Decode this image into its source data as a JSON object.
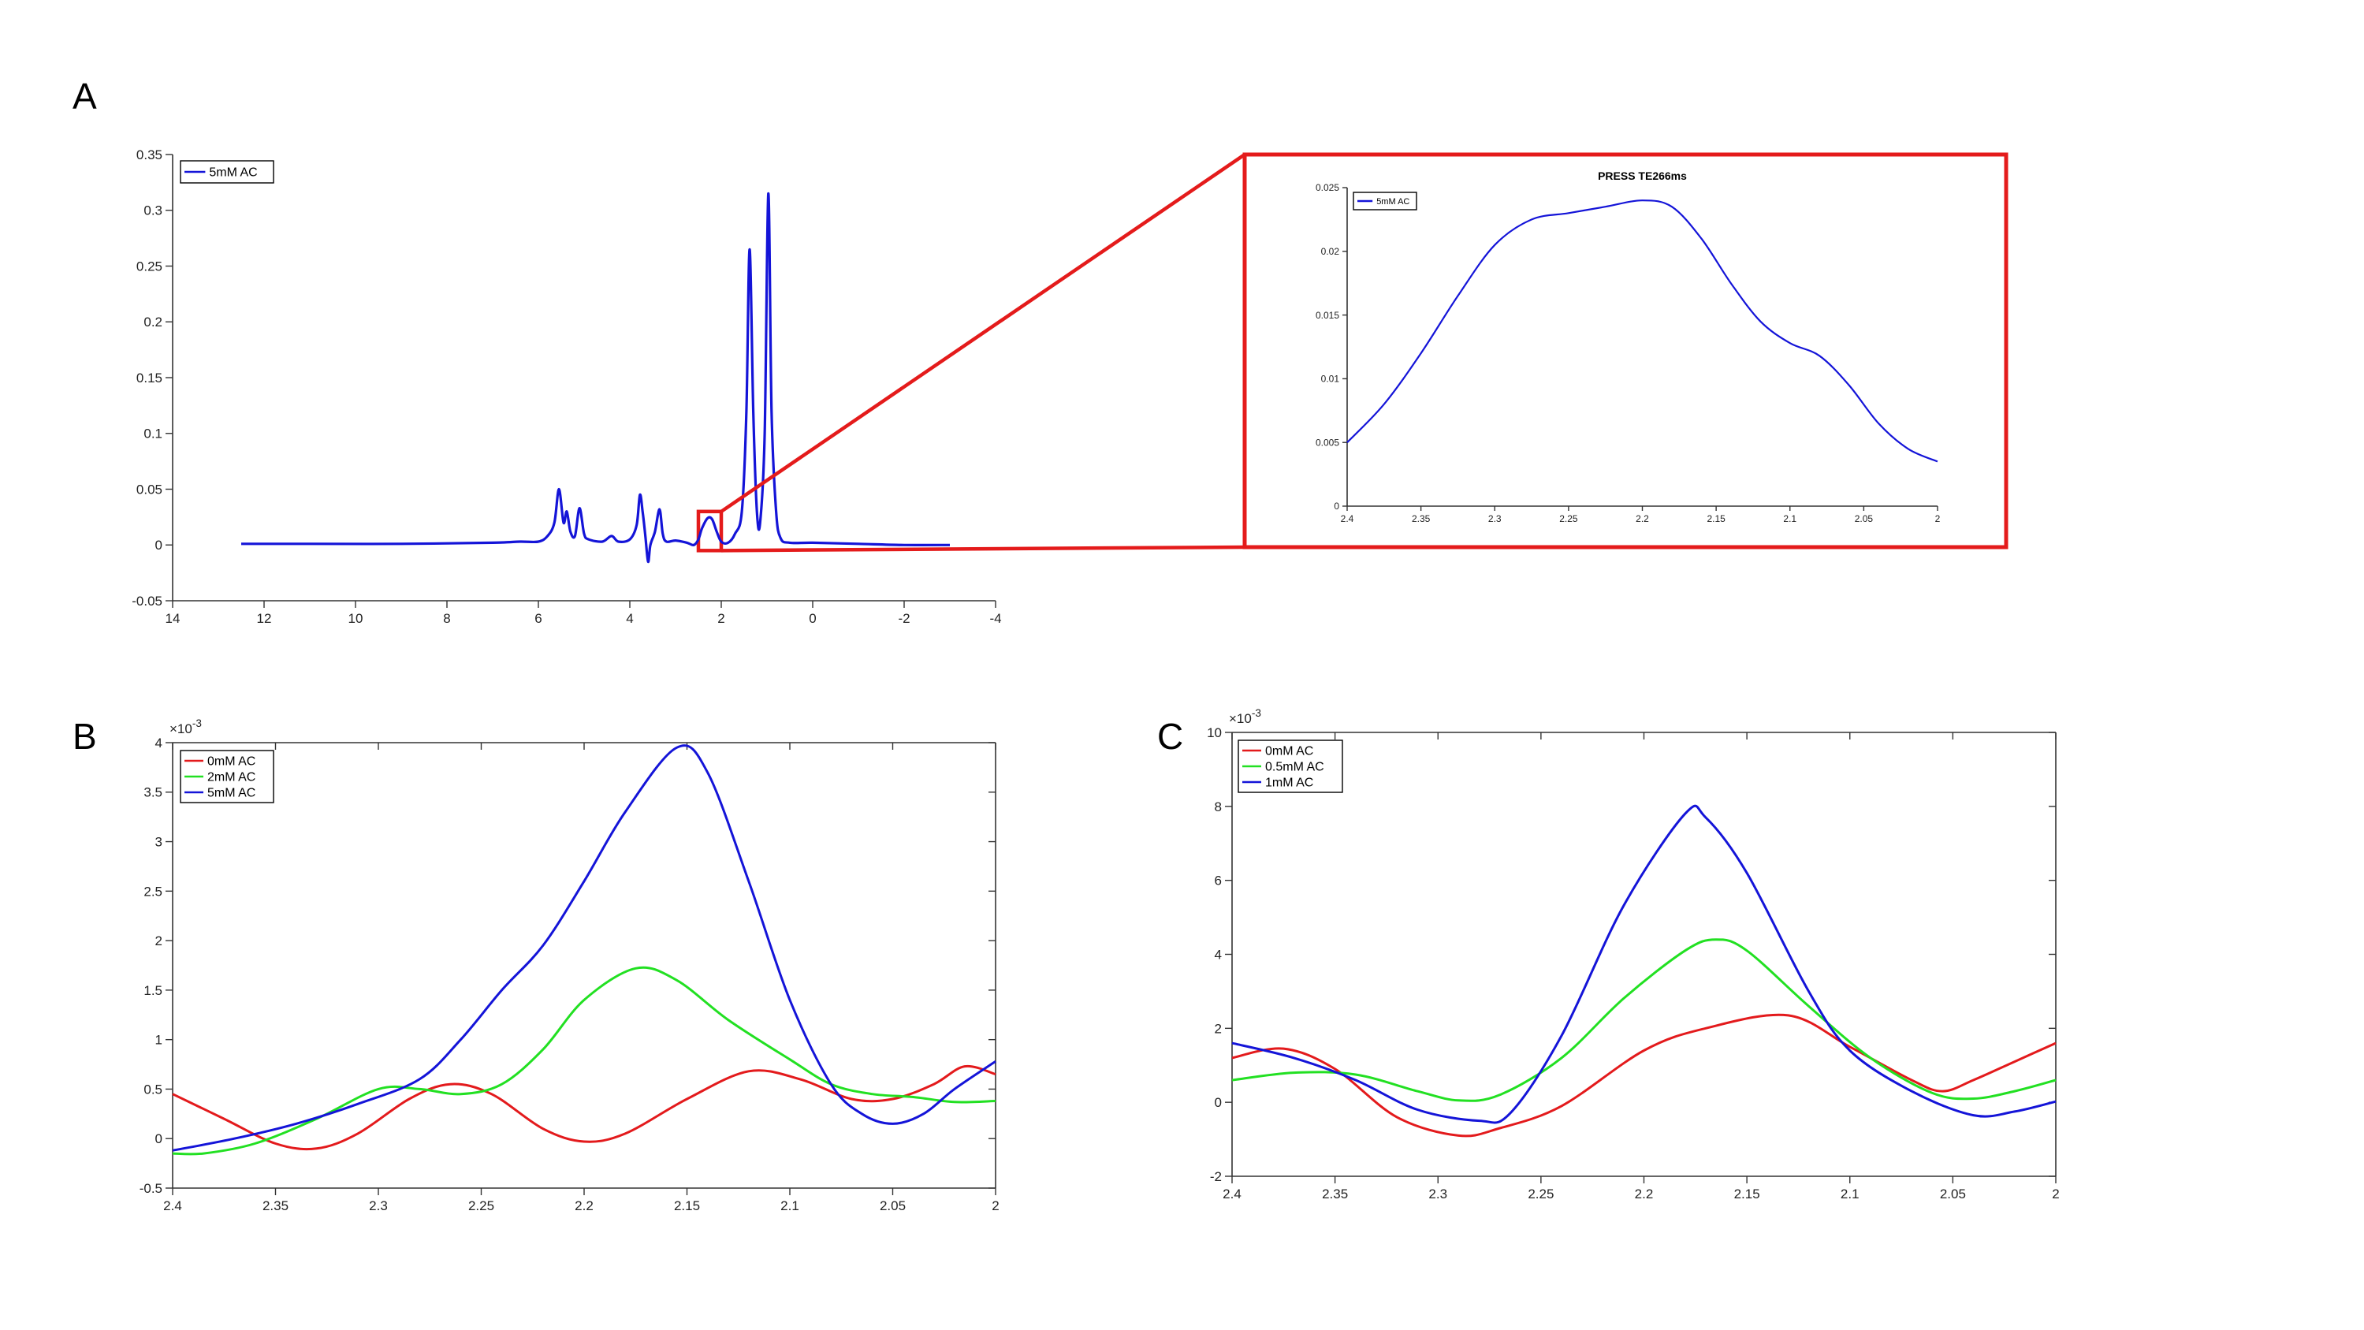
{
  "panels": {
    "a": "A",
    "b": "B",
    "c": "C"
  },
  "colors": {
    "red": "#e31a1c",
    "green": "#22e022",
    "blue": "#1414d8",
    "highlight": "#e41b1b",
    "axis": "#333333"
  },
  "chart_data": [
    {
      "id": "A-main",
      "type": "line",
      "panel": "A",
      "title": "",
      "xlabel": "",
      "ylabel": "",
      "xlim": [
        14,
        -4
      ],
      "x_reversed": true,
      "ylim": [
        -0.05,
        0.35
      ],
      "xticks": [
        14,
        12,
        10,
        8,
        6,
        4,
        2,
        0,
        -2,
        -4
      ],
      "yticks": [
        -0.05,
        0,
        0.05,
        0.1,
        0.15,
        0.2,
        0.25,
        0.3,
        0.35
      ],
      "xtick_labels": [
        "14",
        "12",
        "10",
        "8",
        "6",
        "4",
        "2",
        "0",
        "-2",
        "-4"
      ],
      "ytick_labels": [
        "-0.05",
        "0",
        "0.05",
        "0.1",
        "0.15",
        "0.2",
        "0.25",
        "0.3",
        "0.35"
      ],
      "legend": {
        "position": "top-left",
        "entries": [
          "5mM AC"
        ]
      },
      "highlight_box": {
        "x": [
          2.0,
          2.5
        ],
        "y": [
          -0.005,
          0.03
        ]
      },
      "series": [
        {
          "name": "5mM AC",
          "color": "blue",
          "points": [
            [
              12.5,
              0.001
            ],
            [
              11,
              0.001
            ],
            [
              9,
              0.001
            ],
            [
              7,
              0.002
            ],
            [
              6.4,
              0.003
            ],
            [
              6.0,
              0.003
            ],
            [
              5.8,
              0.008
            ],
            [
              5.65,
              0.02
            ],
            [
              5.55,
              0.05
            ],
            [
              5.45,
              0.02
            ],
            [
              5.38,
              0.03
            ],
            [
              5.3,
              0.012
            ],
            [
              5.2,
              0.008
            ],
            [
              5.1,
              0.033
            ],
            [
              5.0,
              0.01
            ],
            [
              4.9,
              0.005
            ],
            [
              4.6,
              0.003
            ],
            [
              4.4,
              0.008
            ],
            [
              4.25,
              0.003
            ],
            [
              4.0,
              0.005
            ],
            [
              3.85,
              0.018
            ],
            [
              3.78,
              0.045
            ],
            [
              3.72,
              0.03
            ],
            [
              3.66,
              0.008
            ],
            [
              3.6,
              -0.015
            ],
            [
              3.55,
              0.0
            ],
            [
              3.45,
              0.012
            ],
            [
              3.35,
              0.032
            ],
            [
              3.28,
              0.01
            ],
            [
              3.2,
              0.003
            ],
            [
              3.0,
              0.004
            ],
            [
              2.75,
              0.002
            ],
            [
              2.6,
              0.0
            ],
            [
              2.5,
              0.005
            ],
            [
              2.42,
              0.015
            ],
            [
              2.3,
              0.024
            ],
            [
              2.2,
              0.023
            ],
            [
              2.1,
              0.012
            ],
            [
              2.0,
              0.003
            ],
            [
              1.85,
              0.002
            ],
            [
              1.7,
              0.01
            ],
            [
              1.55,
              0.03
            ],
            [
              1.45,
              0.12
            ],
            [
              1.38,
              0.265
            ],
            [
              1.3,
              0.12
            ],
            [
              1.22,
              0.03
            ],
            [
              1.15,
              0.02
            ],
            [
              1.05,
              0.1
            ],
            [
              0.97,
              0.315
            ],
            [
              0.9,
              0.12
            ],
            [
              0.8,
              0.03
            ],
            [
              0.7,
              0.006
            ],
            [
              0.5,
              0.002
            ],
            [
              0.0,
              0.002
            ],
            [
              -1,
              0.001
            ],
            [
              -2,
              0.0
            ],
            [
              -3,
              0.0
            ]
          ]
        }
      ]
    },
    {
      "id": "A-inset",
      "type": "line",
      "panel": "A",
      "title": "PRESS TE266ms",
      "xlabel": "",
      "ylabel": "",
      "xlim": [
        2.4,
        2.0
      ],
      "x_reversed": true,
      "ylim": [
        0,
        0.025
      ],
      "xticks": [
        2.4,
        2.35,
        2.3,
        2.25,
        2.2,
        2.15,
        2.1,
        2.05,
        2.0
      ],
      "yticks": [
        0,
        0.005,
        0.01,
        0.015,
        0.02,
        0.025
      ],
      "xtick_labels": [
        "2.4",
        "2.35",
        "2.3",
        "2.25",
        "2.2",
        "2.15",
        "2.1",
        "2.05",
        "2"
      ],
      "ytick_labels": [
        "0",
        "0.005",
        "0.01",
        "0.015",
        "0.02",
        "0.025"
      ],
      "legend": {
        "position": "top-left",
        "entries": [
          "5mM AC"
        ]
      },
      "series": [
        {
          "name": "5mM AC",
          "color": "blue",
          "points": [
            [
              2.4,
              0.005
            ],
            [
              2.375,
              0.008
            ],
            [
              2.35,
              0.012
            ],
            [
              2.325,
              0.0165
            ],
            [
              2.3,
              0.0205
            ],
            [
              2.275,
              0.0225
            ],
            [
              2.25,
              0.023
            ],
            [
              2.225,
              0.0235
            ],
            [
              2.2,
              0.024
            ],
            [
              2.18,
              0.0235
            ],
            [
              2.16,
              0.021
            ],
            [
              2.14,
              0.0175
            ],
            [
              2.12,
              0.0145
            ],
            [
              2.1,
              0.0128
            ],
            [
              2.08,
              0.0118
            ],
            [
              2.06,
              0.0095
            ],
            [
              2.04,
              0.0065
            ],
            [
              2.02,
              0.0045
            ],
            [
              2.0,
              0.0035
            ]
          ]
        }
      ]
    },
    {
      "id": "B",
      "type": "line",
      "panel": "B",
      "title": "",
      "xlabel": "",
      "ylabel": "",
      "scale_label": "×10",
      "scale_exp": "-3",
      "xlim": [
        2.4,
        2.0
      ],
      "x_reversed": true,
      "ylim": [
        -0.5,
        4
      ],
      "xticks": [
        2.4,
        2.35,
        2.3,
        2.25,
        2.2,
        2.15,
        2.1,
        2.05,
        2.0
      ],
      "yticks": [
        -0.5,
        0,
        0.5,
        1,
        1.5,
        2,
        2.5,
        3,
        3.5,
        4
      ],
      "xtick_labels": [
        "2.4",
        "2.35",
        "2.3",
        "2.25",
        "2.2",
        "2.15",
        "2.1",
        "2.05",
        "2"
      ],
      "ytick_labels": [
        "-0.5",
        "0",
        "0.5",
        "1",
        "1.5",
        "2",
        "2.5",
        "3",
        "3.5",
        "4"
      ],
      "legend": {
        "position": "top-left",
        "entries": [
          "0mM AC",
          "2mM AC",
          "5mM AC"
        ]
      },
      "series": [
        {
          "name": "0mM AC",
          "color": "red",
          "points": [
            [
              2.4,
              0.45
            ],
            [
              2.375,
              0.2
            ],
            [
              2.35,
              -0.05
            ],
            [
              2.33,
              -0.1
            ],
            [
              2.31,
              0.05
            ],
            [
              2.285,
              0.4
            ],
            [
              2.265,
              0.55
            ],
            [
              2.245,
              0.45
            ],
            [
              2.22,
              0.1
            ],
            [
              2.2,
              -0.03
            ],
            [
              2.18,
              0.05
            ],
            [
              2.15,
              0.4
            ],
            [
              2.12,
              0.68
            ],
            [
              2.095,
              0.6
            ],
            [
              2.07,
              0.4
            ],
            [
              2.05,
              0.4
            ],
            [
              2.03,
              0.55
            ],
            [
              2.015,
              0.73
            ],
            [
              2.0,
              0.65
            ]
          ]
        },
        {
          "name": "2mM AC",
          "color": "green",
          "points": [
            [
              2.4,
              -0.15
            ],
            [
              2.385,
              -0.15
            ],
            [
              2.36,
              -0.05
            ],
            [
              2.33,
              0.2
            ],
            [
              2.3,
              0.5
            ],
            [
              2.28,
              0.5
            ],
            [
              2.26,
              0.45
            ],
            [
              2.24,
              0.55
            ],
            [
              2.22,
              0.9
            ],
            [
              2.2,
              1.4
            ],
            [
              2.175,
              1.72
            ],
            [
              2.155,
              1.6
            ],
            [
              2.13,
              1.2
            ],
            [
              2.1,
              0.8
            ],
            [
              2.08,
              0.55
            ],
            [
              2.06,
              0.45
            ],
            [
              2.04,
              0.42
            ],
            [
              2.02,
              0.37
            ],
            [
              2.0,
              0.38
            ]
          ]
        },
        {
          "name": "5mM AC",
          "color": "blue",
          "points": [
            [
              2.4,
              -0.12
            ],
            [
              2.37,
              0.0
            ],
            [
              2.34,
              0.15
            ],
            [
              2.31,
              0.35
            ],
            [
              2.28,
              0.6
            ],
            [
              2.26,
              1.0
            ],
            [
              2.24,
              1.5
            ],
            [
              2.22,
              1.95
            ],
            [
              2.2,
              2.6
            ],
            [
              2.18,
              3.3
            ],
            [
              2.155,
              3.95
            ],
            [
              2.14,
              3.7
            ],
            [
              2.12,
              2.6
            ],
            [
              2.1,
              1.4
            ],
            [
              2.08,
              0.55
            ],
            [
              2.065,
              0.25
            ],
            [
              2.05,
              0.15
            ],
            [
              2.035,
              0.25
            ],
            [
              2.02,
              0.5
            ],
            [
              2.0,
              0.78
            ]
          ]
        }
      ]
    },
    {
      "id": "C",
      "type": "line",
      "panel": "C",
      "title": "",
      "xlabel": "",
      "ylabel": "",
      "scale_label": "×10",
      "scale_exp": "-3",
      "xlim": [
        2.4,
        2.0
      ],
      "x_reversed": true,
      "ylim": [
        -2,
        10
      ],
      "xticks": [
        2.4,
        2.35,
        2.3,
        2.25,
        2.2,
        2.15,
        2.1,
        2.05,
        2.0
      ],
      "yticks": [
        -2,
        0,
        2,
        4,
        6,
        8,
        10
      ],
      "xtick_labels": [
        "2.4",
        "2.35",
        "2.3",
        "2.25",
        "2.2",
        "2.15",
        "2.1",
        "2.05",
        "2"
      ],
      "ytick_labels": [
        "-2",
        "0",
        "2",
        "4",
        "6",
        "8",
        "10"
      ],
      "legend": {
        "position": "top-left",
        "entries": [
          "0mM AC",
          "0.5mM AC",
          "1mM AC"
        ]
      },
      "series": [
        {
          "name": "0mM AC",
          "color": "red",
          "points": [
            [
              2.4,
              1.2
            ],
            [
              2.375,
              1.45
            ],
            [
              2.35,
              0.9
            ],
            [
              2.32,
              -0.4
            ],
            [
              2.29,
              -0.9
            ],
            [
              2.27,
              -0.7
            ],
            [
              2.24,
              -0.1
            ],
            [
              2.2,
              1.4
            ],
            [
              2.17,
              2.0
            ],
            [
              2.13,
              2.35
            ],
            [
              2.1,
              1.5
            ],
            [
              2.07,
              0.6
            ],
            [
              2.055,
              0.3
            ],
            [
              2.04,
              0.6
            ],
            [
              2.02,
              1.1
            ],
            [
              2.0,
              1.6
            ]
          ]
        },
        {
          "name": "0.5mM AC",
          "color": "green",
          "points": [
            [
              2.4,
              0.6
            ],
            [
              2.37,
              0.8
            ],
            [
              2.34,
              0.75
            ],
            [
              2.31,
              0.3
            ],
            [
              2.29,
              0.05
            ],
            [
              2.27,
              0.2
            ],
            [
              2.24,
              1.2
            ],
            [
              2.21,
              2.8
            ],
            [
              2.18,
              4.1
            ],
            [
              2.165,
              4.4
            ],
            [
              2.15,
              4.1
            ],
            [
              2.12,
              2.6
            ],
            [
              2.09,
              1.2
            ],
            [
              2.06,
              0.25
            ],
            [
              2.04,
              0.1
            ],
            [
              2.02,
              0.3
            ],
            [
              2.0,
              0.6
            ]
          ]
        },
        {
          "name": "1mM AC",
          "color": "blue",
          "points": [
            [
              2.4,
              1.6
            ],
            [
              2.37,
              1.2
            ],
            [
              2.34,
              0.6
            ],
            [
              2.31,
              -0.2
            ],
            [
              2.28,
              -0.5
            ],
            [
              2.265,
              -0.3
            ],
            [
              2.24,
              1.8
            ],
            [
              2.21,
              5.3
            ],
            [
              2.18,
              7.8
            ],
            [
              2.17,
              7.7
            ],
            [
              2.15,
              6.2
            ],
            [
              2.12,
              3.0
            ],
            [
              2.1,
              1.4
            ],
            [
              2.07,
              0.3
            ],
            [
              2.04,
              -0.35
            ],
            [
              2.02,
              -0.25
            ],
            [
              2.0,
              0.02
            ]
          ]
        }
      ]
    }
  ]
}
